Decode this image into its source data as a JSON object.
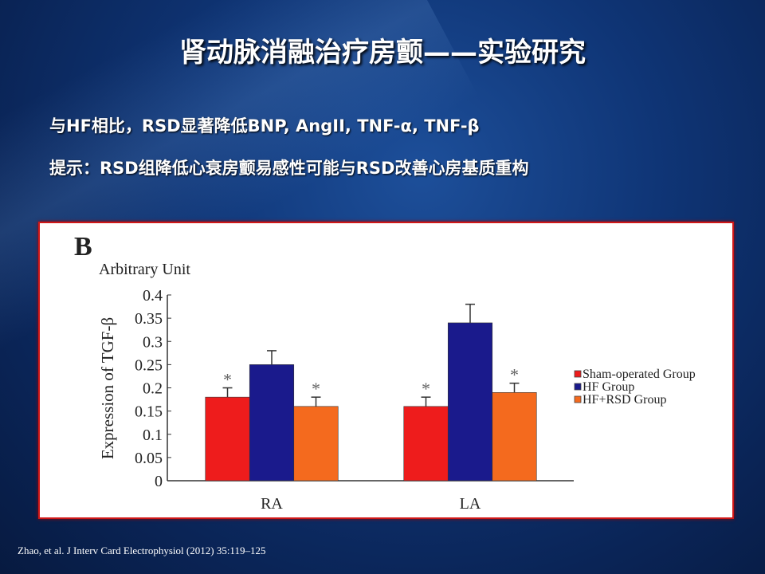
{
  "title": "肾动脉消融治疗房颤——实验研究",
  "lines": [
    "与HF相比，RSD显著降低BNP, AngII, TNF-α, TNF-β",
    "提示：RSD组降低心衰房颤易感性可能与RSD改善心房基质重构"
  ],
  "citation": "Zhao, et al. J Interv Card Electrophysiol (2012) 35:119–125",
  "chart_data": {
    "type": "bar",
    "panel_label": "B",
    "subtitle": "Arbitrary Unit",
    "ylabel": "Expression of TGF-β",
    "xlabel": "",
    "ylim": [
      0,
      0.4
    ],
    "yticks": [
      "0",
      "0.05",
      "0.1",
      "0.15",
      "0.2",
      "0.25",
      "0.3",
      "0.35",
      "0.4"
    ],
    "categories": [
      "RA",
      "LA"
    ],
    "series": [
      {
        "name": "Sham-operated Group",
        "color": "#ee1c1c",
        "values": [
          0.18,
          0.16
        ],
        "errors": [
          0.02,
          0.02
        ],
        "significant": [
          true,
          true
        ]
      },
      {
        "name": "HF Group",
        "color": "#1a1a8c",
        "values": [
          0.25,
          0.34
        ],
        "errors": [
          0.03,
          0.04
        ],
        "significant": [
          false,
          false
        ]
      },
      {
        "name": "HF+RSD Group",
        "color": "#f46a1e",
        "values": [
          0.16,
          0.19
        ],
        "errors": [
          0.02,
          0.02
        ],
        "significant": [
          true,
          true
        ]
      }
    ],
    "significance_marker": "*",
    "legend_position": "right"
  }
}
